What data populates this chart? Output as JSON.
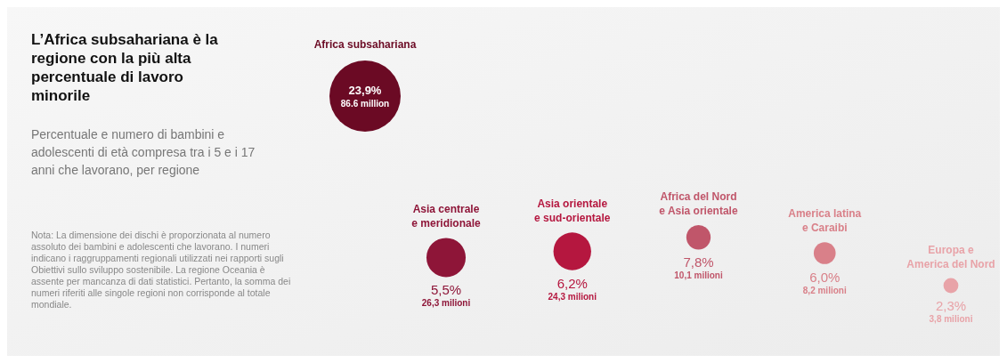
{
  "chart_data": {
    "type": "other",
    "title": "L’Africa subsahariana è la regione con la più alta percentuale di lavoro minorile",
    "subtitle": "Percentuale e numero di bambini e adolescenti di età compresa tra i 5 e i 17 anni che lavorano, per regione",
    "annotations": [
      "Nota: La dimensione dei dischi è proporzionata al numero assoluto dei bambini e adolescenti che lavorano. I numeri indicano i raggruppamenti regionali utilizzati nei rapporti sugli Obiettivi sullo sviluppo sostenibile. La regione Oceania è assente per mancanza di dati statistici. Pertanto, la somma dei numeri riferiti alle singole regioni non corrisponde al totale mondiale."
    ],
    "categories": [
      "Africa subsahariana",
      "Asia centrale e meridionale",
      "Asia orientale e sud-orientale",
      "Africa del Nord e Asia orientale",
      "America latina e Caraibi",
      "Europa e America del Nord"
    ],
    "series": [
      {
        "values": [
          23.9,
          5.5,
          6.2,
          7.8,
          6.0,
          2.3
        ],
        "value_labels": [
          "23,9%",
          "5,5%",
          "6,2%",
          "7,8%",
          "6,0%",
          "2,3%"
        ],
        "colors": [
          "#6b0a24",
          "#8e1538",
          "#b5173f",
          "#c0566a",
          "#d98089",
          "#e8a3a8"
        ]
      },
      {
        "values": [
          86.6,
          26.3,
          24.3,
          10.1,
          8.2,
          3.8
        ],
        "value_labels": [
          "86.6 million",
          "26,3 milioni",
          "24,3 milioni",
          "10,1 milioni",
          "8,2 milioni",
          "3,8 milioni"
        ]
      }
    ]
  }
}
